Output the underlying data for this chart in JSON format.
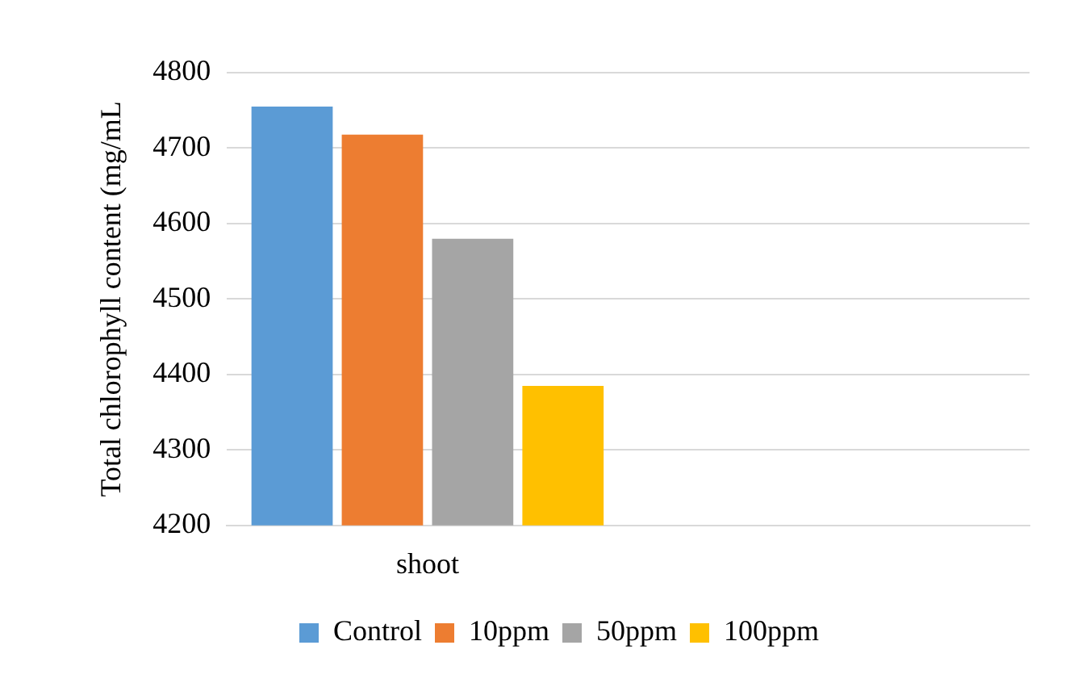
{
  "chart_data": {
    "type": "bar",
    "ylabel": "Total chlorophyll content (mg/mL",
    "categories": [
      "shoot",
      null
    ],
    "series": [
      {
        "name": "Control",
        "color": "#5b9bd5",
        "values": [
          4755,
          null
        ]
      },
      {
        "name": "10ppm",
        "color": "#ed7d31",
        "values": [
          4718,
          null
        ]
      },
      {
        "name": "50ppm",
        "color": "#a5a5a5",
        "values": [
          4580,
          null
        ]
      },
      {
        "name": "100ppm",
        "color": "#ffc000",
        "values": [
          4385,
          null
        ]
      }
    ],
    "ylim": [
      4200,
      4800
    ],
    "yticks": [
      4200,
      4300,
      4400,
      4500,
      4600,
      4700,
      4800
    ],
    "grid": "y",
    "legend": "bottom"
  }
}
